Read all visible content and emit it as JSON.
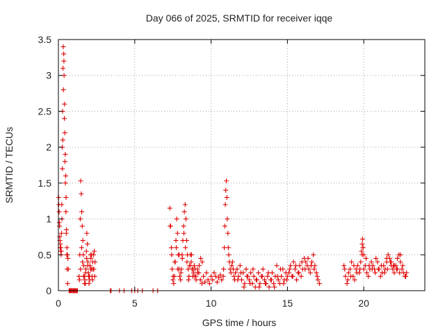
{
  "chart_data": {
    "type": "scatter",
    "title": "Day 066 of 2025, SRMTID for receiver iqqe",
    "xlabel": "GPS time / hours",
    "ylabel": "SRMTID / TECUs",
    "xlim": [
      0,
      24
    ],
    "ylim": [
      0,
      3.5
    ],
    "xticks": [
      0,
      5,
      10,
      15,
      20
    ],
    "xtick_labels": [
      "0",
      "5",
      "10",
      "15",
      "20"
    ],
    "yticks": [
      0,
      0.5,
      1,
      1.5,
      2,
      2.5,
      3,
      3.5
    ],
    "ytick_labels": [
      "0",
      "0.5",
      "1",
      "1.5",
      "2",
      "2.5",
      "3",
      "3.5"
    ],
    "grid": true,
    "marker": "+",
    "color": "#e00000",
    "series": [
      {
        "name": "SRMTID",
        "x": [
          0.02,
          0.05,
          0.08,
          0.1,
          0.12,
          0.15,
          0.18,
          0.2,
          0.22,
          0.25,
          0.27,
          0.3,
          0.32,
          0.35,
          0.37,
          0.4,
          0.42,
          0.45,
          0.48,
          0.5,
          0.52,
          0.55,
          0.57,
          0.6,
          0.03,
          0.06,
          0.09,
          0.13,
          0.16,
          0.19,
          0.23,
          0.26,
          0.29,
          0.33,
          0.36,
          0.39,
          0.43,
          0.46,
          0.49,
          0.53,
          0.56,
          0.59,
          0.62,
          0.65,
          0.7,
          0.75,
          0.8,
          0.85,
          0.9,
          0.95,
          1.0,
          1.05,
          1.1,
          1.15,
          1.2,
          1.25,
          1.35,
          1.4,
          1.43,
          1.46,
          1.5,
          1.53,
          1.56,
          1.6,
          1.63,
          1.66,
          1.7,
          1.73,
          1.76,
          1.8,
          1.83,
          1.86,
          1.9,
          1.93,
          1.96,
          2.0,
          2.03,
          2.06,
          2.1,
          2.13,
          2.16,
          2.2,
          2.23,
          2.26,
          2.3,
          2.35,
          2.4,
          1.38,
          1.45,
          1.52,
          1.58,
          1.65,
          1.72,
          1.78,
          1.85,
          1.92,
          1.98,
          2.05,
          2.12,
          2.18,
          2.25,
          2.32,
          2.38,
          3.4,
          3.45,
          4.0,
          4.3,
          4.8,
          5.0,
          5.2,
          5.5,
          6.2,
          6.5,
          7.3,
          7.35,
          7.4,
          7.45,
          7.5,
          7.55,
          7.6,
          7.65,
          7.7,
          7.75,
          7.8,
          7.85,
          7.9,
          7.95,
          8.0,
          8.05,
          8.1,
          8.15,
          8.2,
          8.25,
          8.3,
          8.35,
          8.4,
          8.45,
          8.5,
          8.55,
          8.6,
          8.65,
          8.7,
          8.75,
          8.8,
          8.85,
          8.9,
          8.95,
          9.0,
          7.32,
          7.42,
          7.52,
          7.62,
          7.72,
          7.82,
          7.92,
          8.02,
          8.12,
          8.22,
          8.32,
          8.42,
          8.52,
          8.62,
          8.72,
          8.82,
          8.92,
          9.02,
          9.12,
          9.22,
          9.32,
          9.42,
          9.1,
          9.2,
          9.3,
          9.4,
          9.5,
          9.6,
          9.7,
          9.8,
          9.9,
          10.0,
          10.1,
          10.2,
          10.3,
          10.4,
          10.5,
          10.6,
          10.7,
          10.8,
          10.82,
          10.87,
          10.9,
          10.93,
          10.96,
          11.0,
          11.03,
          11.06,
          11.1,
          11.13,
          11.16,
          11.2,
          11.25,
          11.3,
          11.35,
          11.4,
          11.45,
          11.5,
          11.55,
          11.6,
          11.7,
          11.8,
          11.9,
          12.0,
          12.1,
          12.2,
          12.3,
          12.4,
          12.5,
          12.6,
          12.7,
          12.8,
          12.9,
          13.0,
          13.1,
          13.2,
          13.3,
          13.4,
          13.5,
          13.6,
          13.7,
          13.8,
          13.9,
          14.0,
          14.1,
          14.2,
          14.3,
          14.4,
          14.5,
          14.6,
          14.7,
          14.8,
          14.9,
          15.0,
          11.75,
          11.95,
          12.15,
          12.35,
          12.55,
          12.75,
          12.95,
          13.15,
          13.35,
          13.55,
          13.75,
          13.95,
          14.15,
          14.35,
          14.55,
          14.75,
          14.95,
          15.1,
          15.2,
          15.3,
          15.4,
          15.5,
          15.6,
          15.7,
          15.8,
          15.9,
          16.0,
          16.1,
          16.2,
          16.3,
          16.4,
          16.5,
          16.6,
          16.7,
          16.8,
          16.9,
          17.0,
          17.1,
          15.15,
          15.35,
          15.55,
          15.75,
          15.95,
          16.15,
          16.35,
          16.55,
          16.75,
          16.95,
          18.7,
          18.8,
          18.9,
          19.0,
          19.1,
          19.2,
          19.3,
          19.4,
          19.5,
          19.6,
          19.7,
          19.8,
          19.9,
          20.0,
          20.1,
          20.2,
          20.3,
          20.4,
          20.5,
          20.6,
          20.7,
          20.8,
          20.9,
          21.0,
          21.1,
          21.2,
          21.3,
          21.4,
          21.5,
          21.6,
          21.7,
          21.8,
          21.9,
          22.0,
          22.1,
          22.2,
          22.3,
          22.4,
          22.5,
          22.6,
          22.7,
          22.8,
          18.75,
          18.95,
          19.15,
          19.35,
          19.55,
          19.75,
          19.95,
          20.15,
          20.35,
          20.55,
          20.75,
          20.95,
          21.15,
          21.35,
          21.55,
          21.75,
          21.95,
          22.15,
          22.35,
          22.55,
          22.75,
          19.85,
          19.9,
          19.92,
          19.95,
          20.0,
          21.5,
          21.8,
          22.0,
          22.2,
          22.4
        ],
        "y": [
          1.3,
          1.1,
          0.9,
          0.7,
          0.6,
          0.55,
          0.5,
          0.8,
          1.2,
          2.0,
          2.5,
          3.1,
          3.4,
          3.3,
          3.0,
          2.6,
          2.2,
          1.9,
          1.6,
          1.3,
          0.8,
          0.5,
          0.3,
          0.1,
          1.2,
          0.95,
          0.75,
          0.65,
          0.6,
          0.55,
          1.0,
          1.7,
          2.1,
          2.8,
          3.2,
          2.4,
          1.8,
          1.5,
          1.1,
          0.85,
          0.6,
          0.5,
          0.45,
          0.3,
          0.0,
          0.0,
          0.0,
          0.0,
          0.0,
          0.0,
          0.0,
          0.0,
          0.0,
          0.0,
          0.0,
          0.0,
          0.2,
          0.5,
          1.0,
          1.53,
          1.35,
          1.1,
          0.9,
          0.7,
          0.5,
          0.35,
          0.2,
          0.15,
          0.1,
          0.3,
          0.55,
          0.8,
          0.65,
          0.4,
          0.25,
          0.1,
          0.2,
          0.35,
          0.5,
          0.45,
          0.3,
          0.2,
          0.15,
          0.3,
          0.5,
          0.55,
          0.4,
          0.15,
          0.3,
          0.6,
          0.4,
          0.2,
          0.1,
          0.25,
          0.45,
          0.35,
          0.2,
          0.15,
          0.3,
          0.5,
          0.4,
          0.3,
          0.2,
          0.0,
          0.0,
          0.0,
          0.0,
          0.0,
          0.0,
          0.0,
          0.0,
          0.0,
          0.0,
          1.15,
          0.9,
          0.6,
          0.3,
          0.15,
          0.1,
          0.2,
          0.4,
          0.7,
          1.0,
          0.8,
          0.5,
          0.3,
          0.2,
          0.15,
          0.3,
          0.5,
          0.7,
          0.9,
          1.1,
          1.2,
          1.0,
          0.7,
          0.5,
          0.3,
          0.2,
          0.35,
          0.5,
          0.4,
          0.3,
          0.2,
          0.25,
          0.35,
          0.3,
          0.2,
          0.9,
          0.5,
          0.2,
          0.4,
          0.6,
          0.3,
          0.5,
          0.25,
          0.45,
          0.8,
          0.6,
          0.4,
          0.15,
          0.35,
          0.5,
          0.3,
          0.2,
          0.15,
          0.25,
          0.35,
          0.45,
          0.4,
          0.3,
          0.25,
          0.15,
          0.1,
          0.2,
          0.12,
          0.25,
          0.15,
          0.1,
          0.2,
          0.15,
          0.25,
          0.2,
          0.12,
          0.18,
          0.22,
          0.15,
          0.2,
          0.3,
          0.6,
          0.9,
          1.2,
          1.4,
          1.53,
          1.3,
          1.0,
          0.8,
          0.6,
          0.5,
          0.4,
          0.3,
          0.25,
          0.35,
          0.4,
          0.3,
          0.2,
          0.15,
          0.25,
          0.3,
          0.2,
          0.35,
          0.15,
          0.25,
          0.1,
          0.3,
          0.2,
          0.15,
          0.25,
          0.1,
          0.2,
          0.05,
          0.15,
          0.25,
          0.1,
          0.2,
          0.3,
          0.15,
          0.1,
          0.2,
          0.05,
          0.15,
          0.25,
          0.1,
          0.2,
          0.35,
          0.15,
          0.1,
          0.2,
          0.3,
          0.15,
          0.25,
          0.2,
          0.15,
          0.25,
          0.05,
          0.2,
          0.1,
          0.3,
          0.15,
          0.05,
          0.2,
          0.1,
          0.25,
          0.15,
          0.05,
          0.2,
          0.3,
          0.1,
          0.15,
          0.25,
          0.35,
          0.2,
          0.4,
          0.3,
          0.15,
          0.25,
          0.35,
          0.2,
          0.3,
          0.45,
          0.4,
          0.35,
          0.3,
          0.25,
          0.4,
          0.5,
          0.35,
          0.25,
          0.15,
          0.1,
          0.3,
          0.2,
          0.35,
          0.25,
          0.4,
          0.3,
          0.45,
          0.35,
          0.3,
          0.2,
          0.35,
          0.2,
          0.1,
          0.25,
          0.3,
          0.4,
          0.2,
          0.15,
          0.3,
          0.35,
          0.25,
          0.4,
          0.5,
          0.3,
          0.35,
          0.25,
          0.2,
          0.3,
          0.4,
          0.35,
          0.3,
          0.45,
          0.4,
          0.3,
          0.2,
          0.25,
          0.35,
          0.3,
          0.4,
          0.5,
          0.45,
          0.35,
          0.3,
          0.25,
          0.35,
          0.45,
          0.5,
          0.4,
          0.3,
          0.25,
          0.2,
          0.25,
          0.3,
          0.15,
          0.2,
          0.35,
          0.25,
          0.3,
          0.6,
          0.45,
          0.35,
          0.3,
          0.25,
          0.3,
          0.35,
          0.25,
          0.3,
          0.4,
          0.35,
          0.3,
          0.25,
          0.35,
          0.2,
          0.55,
          0.65,
          0.72,
          0.6,
          0.5,
          0.45,
          0.4,
          0.35,
          0.3,
          0.5
        ]
      }
    ]
  }
}
